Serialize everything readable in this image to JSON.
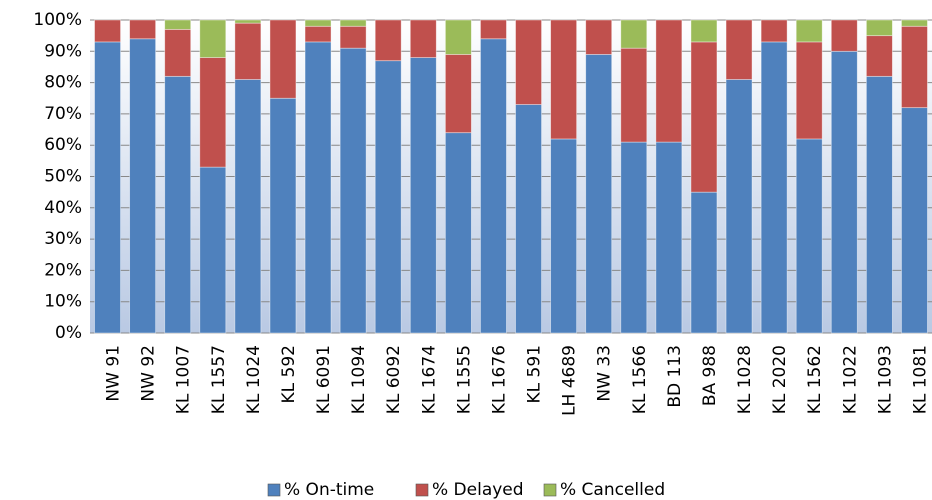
{
  "chart_data": {
    "type": "stacked_bar",
    "categories": [
      "NW 91",
      "NW 92",
      "KL 1007",
      "KL 1557",
      "KL 1024",
      "KL 592",
      "KL 6091",
      "KL 1094",
      "KL 6092",
      "KL 1674",
      "KL 1555",
      "KL 1676",
      "KL 591",
      "LH 4689",
      "NW 33",
      "KL 1566",
      "BD 113",
      "BA 988",
      "KL 1028",
      "KL 2020",
      "KL 1562",
      "KL 1022",
      "KL 1093",
      "KL 1081"
    ],
    "series": [
      {
        "name": "% On-time",
        "color": "#4f81bd",
        "values": [
          93,
          94,
          82,
          53,
          81,
          75,
          93,
          91,
          87,
          88,
          64,
          94,
          73,
          62,
          89,
          61,
          61,
          45,
          81,
          93,
          62,
          90,
          82,
          72
        ]
      },
      {
        "name": "% Delayed",
        "color": "#c0504d",
        "values": [
          7,
          6,
          15,
          35,
          18,
          25,
          5,
          7,
          13,
          12,
          25,
          6,
          27,
          38,
          11,
          30,
          39,
          48,
          19,
          7,
          31,
          10,
          13,
          26
        ]
      },
      {
        "name": "% Cancelled",
        "color": "#9bbb59",
        "values": [
          0,
          0,
          3,
          12,
          1,
          0,
          2,
          2,
          0,
          0,
          11,
          0,
          0,
          0,
          0,
          9,
          0,
          7,
          0,
          0,
          7,
          0,
          5,
          2
        ]
      }
    ],
    "ylim": [
      0,
      100
    ],
    "yticks": [
      {
        "value": 0,
        "label": "0%"
      },
      {
        "value": 10,
        "label": "10%"
      },
      {
        "value": 20,
        "label": "20%"
      },
      {
        "value": 30,
        "label": "30%"
      },
      {
        "value": 40,
        "label": "40%"
      },
      {
        "value": 50,
        "label": "50%"
      },
      {
        "value": 60,
        "label": "60%"
      },
      {
        "value": 70,
        "label": "70%"
      },
      {
        "value": 80,
        "label": "80%"
      },
      {
        "value": 90,
        "label": "90%"
      },
      {
        "value": 100,
        "label": "100%"
      }
    ],
    "grid": true,
    "legend": "bottom"
  }
}
